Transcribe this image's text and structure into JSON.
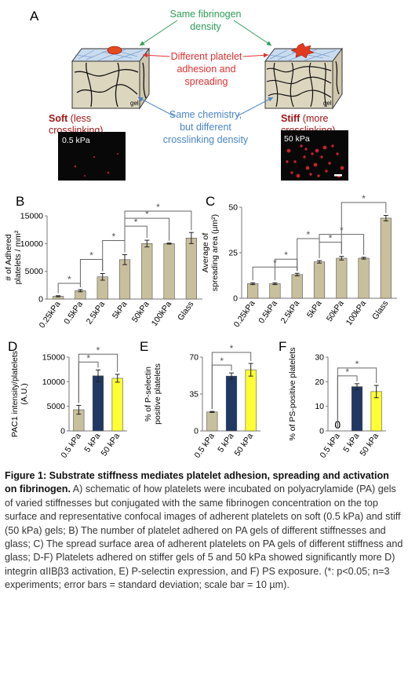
{
  "panel_a": {
    "label": "A",
    "top_text": [
      "Same fibrinogen",
      "density"
    ],
    "mid_text": [
      "Different platelet",
      "adhesion and",
      "spreading"
    ],
    "bottom_text": [
      "Same chemistry,",
      "but different",
      "crosslinking density"
    ],
    "soft_title": "Soft",
    "soft_sub1": " (less",
    "soft_sub2": "crosslinking)",
    "stiff_title": "Stiff",
    "stiff_sub1": " (more",
    "stiff_sub2": "crosslinking)",
    "gel_label": "gel",
    "soft_image_label": "0.5 kPa",
    "stiff_image_label": "50 kPa",
    "colors": {
      "green": "#2e9e57",
      "red": "#e03030",
      "blue": "#4a86c8",
      "darkred": "#a51515",
      "cube": "#ddd6bf"
    }
  },
  "chart_data": [
    {
      "id": "B",
      "type": "bar",
      "label": "B",
      "ylabel_lines": [
        "# of Adhered",
        "platelets / mm²"
      ],
      "categories": [
        "0.25kPa",
        "0.5kPa",
        "2.5kPa",
        "5kPa",
        "50kPa",
        "100kPa",
        "Glass"
      ],
      "values": [
        500,
        1500,
        4000,
        7100,
        10000,
        10000,
        11000
      ],
      "errors": [
        100,
        200,
        600,
        900,
        600,
        100,
        1000
      ],
      "ylim": [
        0,
        15000
      ],
      "yticks": [
        0,
        5000,
        10000,
        15000
      ],
      "colors": [
        "#c8bf9c",
        "#c8bf9c",
        "#c8bf9c",
        "#c8bf9c",
        "#c8bf9c",
        "#c8bf9c",
        "#c8bf9c"
      ],
      "sig": [
        [
          0,
          1
        ],
        [
          1,
          2
        ],
        [
          2,
          3
        ],
        [
          3,
          4
        ],
        [
          3,
          5
        ],
        [
          3,
          6
        ]
      ],
      "sig_label": "*"
    },
    {
      "id": "C",
      "type": "bar",
      "label": "C",
      "ylabel_lines": [
        "Average of",
        "spreading area  (µm²)"
      ],
      "categories": [
        "0.25kPa",
        "0.5kPa",
        "2.5kPa",
        "5kPa",
        "50kPa",
        "100kPa",
        "Glass"
      ],
      "values": [
        8,
        8,
        13,
        20,
        22,
        22,
        44
      ],
      "errors": [
        0.5,
        0.5,
        0.7,
        0.7,
        1,
        0.5,
        1.5
      ],
      "ylim": [
        0,
        50
      ],
      "yticks": [
        0,
        25,
        50
      ],
      "colors": [
        "#c8bf9c",
        "#c8bf9c",
        "#c8bf9c",
        "#c8bf9c",
        "#c8bf9c",
        "#c8bf9c",
        "#c8bf9c"
      ],
      "sig": [
        [
          0,
          2
        ],
        [
          1,
          2
        ],
        [
          2,
          3
        ],
        [
          3,
          4
        ],
        [
          3,
          5
        ],
        [
          4,
          6
        ]
      ],
      "sig_label": "*"
    },
    {
      "id": "D",
      "type": "bar",
      "label": "D",
      "ylabel_lines": [
        "PAC1 intensity/platelets",
        "(A.U.)"
      ],
      "categories": [
        "0.5 kPa",
        "5 kPa",
        "50 kPa"
      ],
      "values": [
        4300,
        11200,
        10700
      ],
      "errors": [
        900,
        1200,
        800
      ],
      "ylim": [
        0,
        15000
      ],
      "yticks": [
        0,
        5000,
        10000,
        15000
      ],
      "colors": [
        "#c8bf9c",
        "#1f3864",
        "#ffff33"
      ],
      "sig": [
        [
          0,
          1
        ],
        [
          0,
          2
        ]
      ],
      "sig_label": "*"
    },
    {
      "id": "E",
      "type": "bar",
      "label": "E",
      "ylabel_lines": [
        "% of P-selectin",
        "positive platelets"
      ],
      "categories": [
        "0.5 kPa",
        "5 kPa",
        "50 kPa"
      ],
      "values": [
        18,
        52,
        58
      ],
      "errors": [
        0.5,
        3,
        6
      ],
      "ylim": [
        0,
        70
      ],
      "yticks": [
        0,
        35,
        70
      ],
      "colors": [
        "#c8bf9c",
        "#1f3864",
        "#ffff33"
      ],
      "sig": [
        [
          0,
          1
        ],
        [
          0,
          2
        ]
      ],
      "sig_label": "*"
    },
    {
      "id": "F",
      "type": "bar",
      "label": "F",
      "ylabel_lines": [
        "% of PS-positive platelets"
      ],
      "categories": [
        "0.5 kPa",
        "5 kPa",
        "50 kPa"
      ],
      "values": [
        0,
        18,
        16
      ],
      "errors": [
        0,
        1.2,
        2.5
      ],
      "ylim": [
        0,
        30
      ],
      "yticks": [
        0,
        10,
        20,
        30
      ],
      "colors": [
        "#c8bf9c",
        "#1f3864",
        "#ffff33"
      ],
      "sig": [
        [
          0,
          1
        ],
        [
          0,
          2
        ]
      ],
      "sig_label": "*",
      "zero_label": "0"
    }
  ],
  "caption": {
    "bold": "Figure 1: Substrate stiffness mediates platelet adhesion, spreading and activation on fibrinogen.",
    "body": " A) schematic of how platelets were incubated on polyacrylamide (PA) gels of varied stiffnesses but conjugated with the same fibrinogen concentration on the top surface and representative confocal images of adherent platelets on soft (0.5 kPa) and stiff (50 kPa) gels; B) The number of platelet adhered on PA gels of different stiffnesses and glass; C) The spread surface area of adherent platelets on PA gels of different stiffness and glass; D-F) Platelets adhered on stiffer gels of 5 and 50 kPa showed significantly more D) integrin αIIBβ3 activation, E) P-selectin expression, and F) PS exposure.  (*: p<0.05; n=3 experiments; error bars = standard deviation; scale bar = 10 µm)."
  }
}
